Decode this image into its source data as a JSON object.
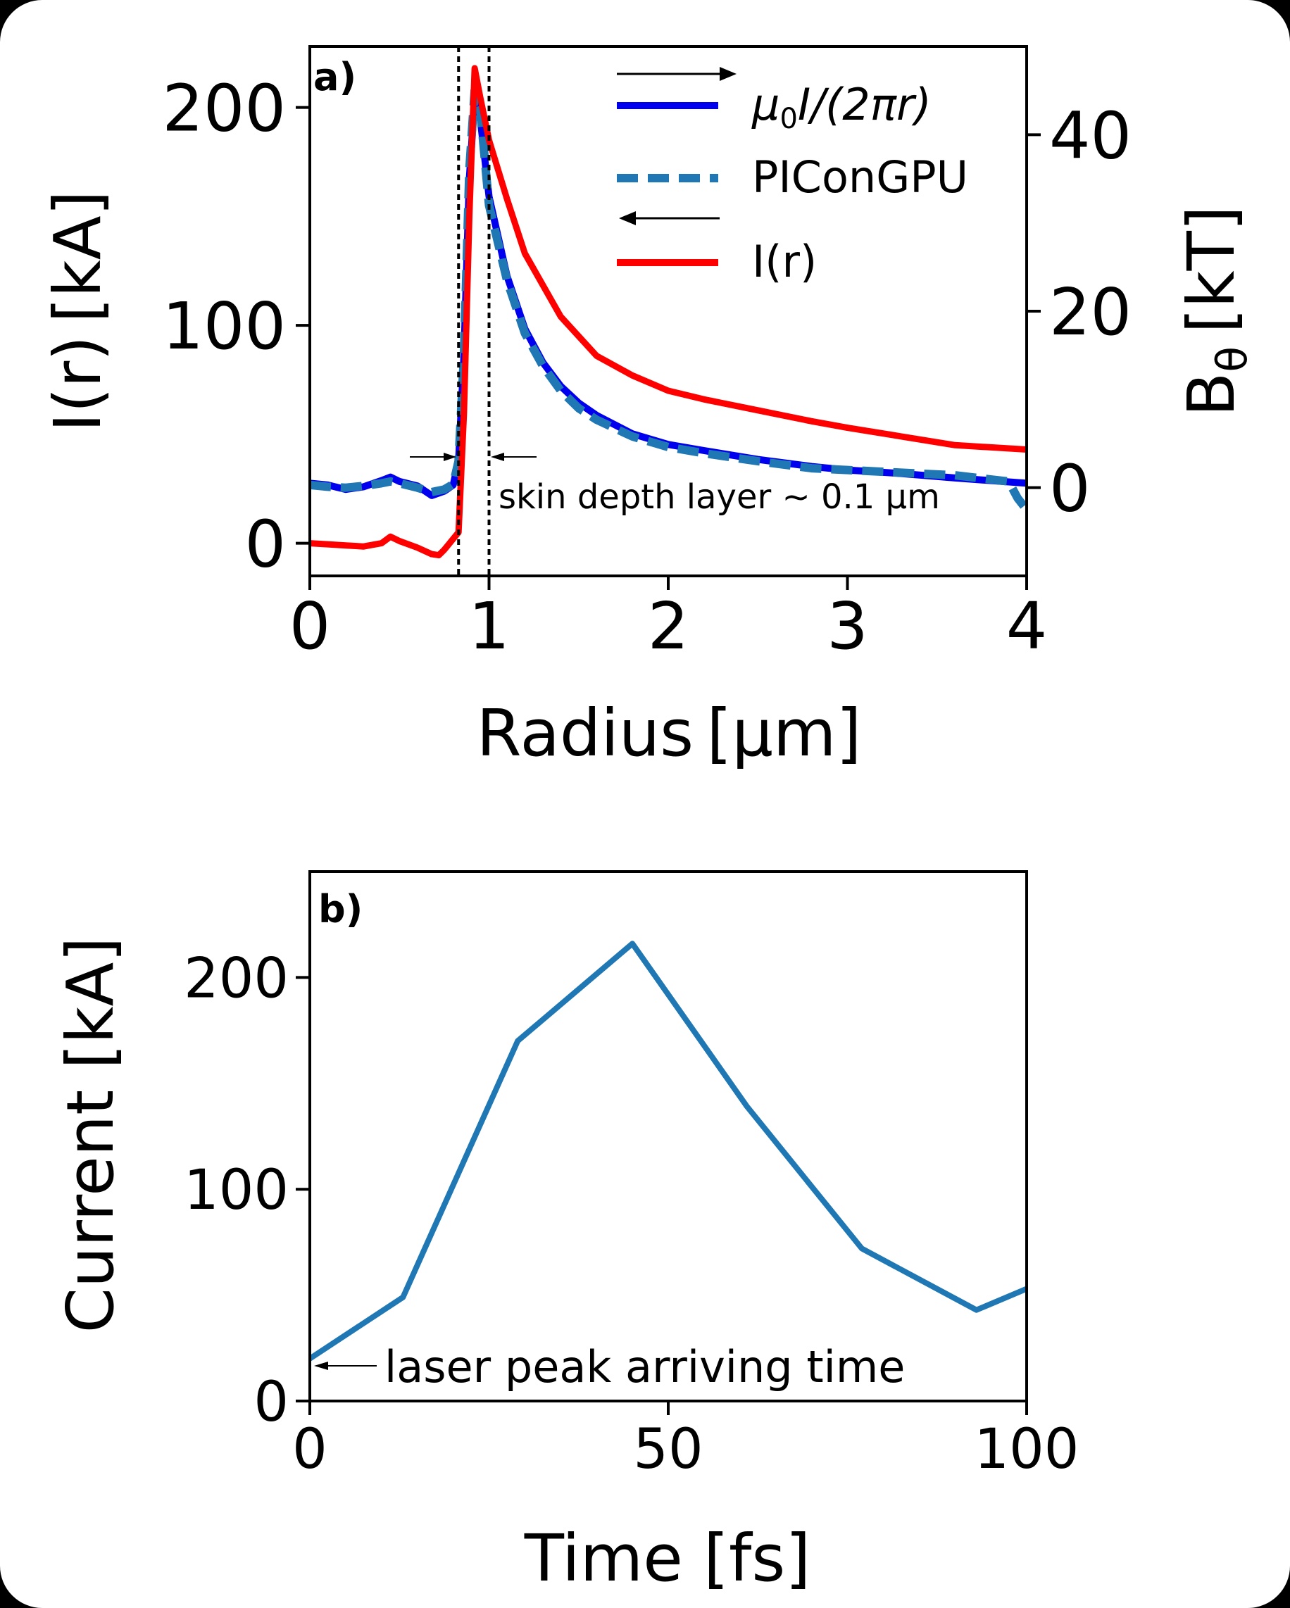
{
  "chart_data": [
    {
      "type": "line",
      "panel_label": "a)",
      "xlabel": "Radius [μm]",
      "ylabel_left": "I(r) [kA]",
      "ylabel_right": "Bθ [kT]",
      "ylabel_right_base": "B",
      "ylabel_right_sub": "θ",
      "ylabel_right_rest": " [kT]",
      "xlim": [
        0,
        4
      ],
      "ylim_left": [
        -15,
        228
      ],
      "ylim_right": [
        -10,
        50
      ],
      "xticks": [
        "0",
        "1",
        "2",
        "3",
        "4"
      ],
      "yticks_left": [
        "0",
        "100",
        "200"
      ],
      "yticks_right": [
        "0",
        "20",
        "40"
      ],
      "legend": [
        "μ₀I/(2πr)",
        "PIConGPU",
        "I(r)"
      ],
      "legend_math_mu": "μ",
      "legend_math_sub0": "0",
      "legend_math_rest": "I/(2πr)",
      "annotation": "skin depth layer ~ 0.1 μm",
      "vlines": [
        0.83,
        1.0
      ],
      "colors": {
        "mu0": "#0000ee",
        "picongpu": "#1f77b4",
        "ir": "#ff0000"
      },
      "series": [
        {
          "name": "μ₀I/(2πr)",
          "axis": "right",
          "x": [
            0,
            0.1,
            0.2,
            0.3,
            0.4,
            0.45,
            0.5,
            0.6,
            0.68,
            0.75,
            0.8,
            0.83,
            0.86,
            0.89,
            0.92,
            0.95,
            1.0,
            1.1,
            1.2,
            1.3,
            1.4,
            1.5,
            1.6,
            1.8,
            2.0,
            2.2,
            2.5,
            2.8,
            3.0,
            3.3,
            3.6,
            4.0
          ],
          "y": [
            0.5,
            0.3,
            -0.2,
            0.1,
            0.8,
            1.2,
            0.7,
            0.2,
            -0.9,
            -0.4,
            0.3,
            3.0,
            15.0,
            35.0,
            44.0,
            42.0,
            33.0,
            24.0,
            18.0,
            14.2,
            11.5,
            9.6,
            8.2,
            6.1,
            4.9,
            4.2,
            3.2,
            2.4,
            2.0,
            1.6,
            1.1,
            0.5
          ]
        },
        {
          "name": "PIConGPU",
          "axis": "right",
          "x": [
            0,
            0.1,
            0.2,
            0.3,
            0.4,
            0.45,
            0.5,
            0.6,
            0.68,
            0.75,
            0.8,
            0.83,
            0.86,
            0.89,
            0.92,
            0.95,
            1.0,
            1.1,
            1.2,
            1.3,
            1.4,
            1.5,
            1.6,
            1.8,
            2.0,
            2.2,
            2.5,
            2.8,
            3.0,
            3.3,
            3.6,
            3.9,
            3.95,
            4.0
          ],
          "y": [
            0.3,
            0.1,
            0.0,
            0.2,
            0.5,
            0.7,
            0.5,
            0.0,
            -0.5,
            -0.2,
            0.4,
            3.0,
            15.0,
            36.0,
            45.0,
            43.0,
            32.0,
            23.5,
            17.5,
            13.8,
            11.0,
            9.0,
            7.7,
            5.8,
            4.6,
            3.9,
            3.0,
            2.2,
            2.0,
            1.7,
            1.4,
            0.7,
            -1.2,
            -2.5
          ]
        },
        {
          "name": "I(r)",
          "axis": "left",
          "x": [
            0,
            0.1,
            0.2,
            0.3,
            0.4,
            0.45,
            0.5,
            0.6,
            0.68,
            0.72,
            0.75,
            0.8,
            0.83,
            0.86,
            0.89,
            0.92,
            0.95,
            1.0,
            1.1,
            1.2,
            1.4,
            1.6,
            1.8,
            2.0,
            2.2,
            2.5,
            2.8,
            3.0,
            3.3,
            3.6,
            4.0
          ],
          "y": [
            0,
            -0.5,
            -1,
            -1.5,
            0,
            3,
            1,
            -2,
            -5,
            -5.5,
            -3,
            2,
            5,
            60,
            150,
            218,
            205,
            185,
            158,
            133,
            104,
            86,
            77,
            70,
            66,
            61,
            56,
            53,
            49,
            45,
            43
          ]
        }
      ]
    },
    {
      "type": "line",
      "panel_label": "b)",
      "xlabel": "Time [fs]",
      "ylabel": "Current [kA]",
      "xlim": [
        0,
        100
      ],
      "ylim": [
        0,
        250
      ],
      "xticks": [
        "0",
        "50",
        "100"
      ],
      "yticks": [
        "0",
        "100",
        "200"
      ],
      "annotation": "laser peak arriving time",
      "color": "#1f77b4",
      "series": [
        {
          "name": "Current",
          "x": [
            0,
            13,
            29,
            45,
            61,
            77,
            93,
            100
          ],
          "y": [
            20,
            49,
            170,
            216,
            139,
            72,
            43,
            53
          ]
        }
      ]
    }
  ]
}
